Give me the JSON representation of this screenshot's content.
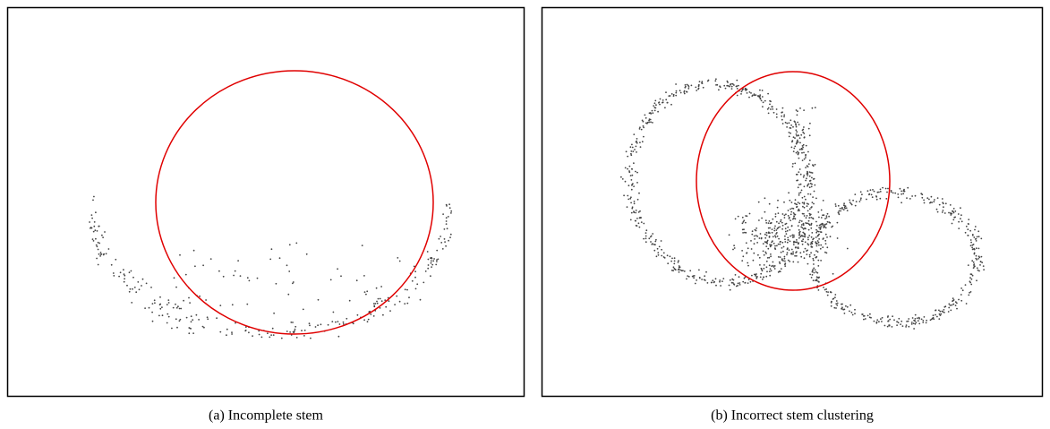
{
  "figures": [
    {
      "caption": "(a) Incomplete stem"
    },
    {
      "caption": "(b) Incorrect stem clustering"
    }
  ]
}
